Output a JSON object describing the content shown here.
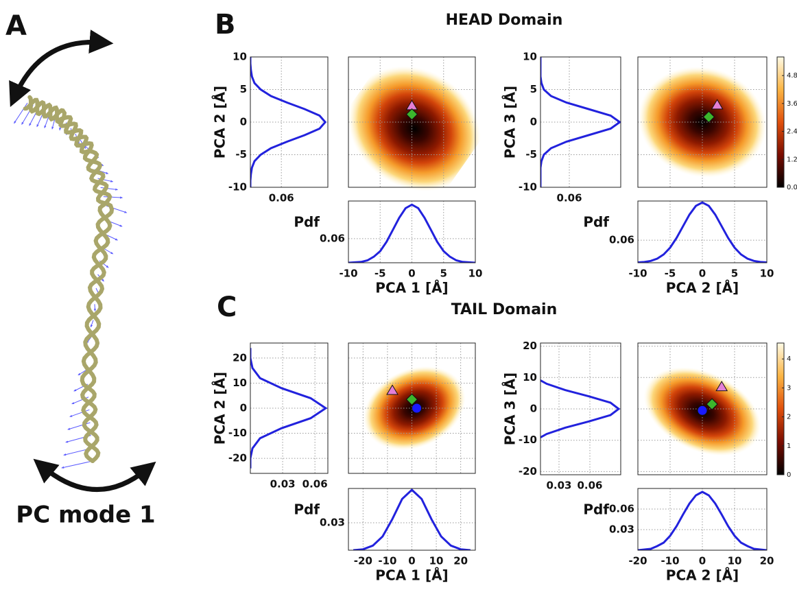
{
  "panels": {
    "A": {
      "label": "A",
      "caption": "PC mode 1"
    },
    "B": {
      "label": "B",
      "title": "HEAD Domain"
    },
    "C": {
      "label": "C",
      "title": "TAIL Domain"
    }
  },
  "chart_data": [
    {
      "type": "line",
      "orientation": "vertical",
      "ylabel": "PCA 2 [Å]",
      "color": "#2222dd",
      "grid": true,
      "ylim": [
        -10,
        10
      ],
      "yticks": [
        10,
        5,
        0,
        -5,
        -10
      ],
      "xlim": [
        0,
        0.15
      ],
      "xticks": [
        0.06
      ],
      "y": [
        -10,
        -9,
        -8,
        -7,
        -6,
        -5,
        -4,
        -3,
        -2,
        -1,
        0,
        1,
        2,
        3,
        4,
        5,
        6,
        7,
        8,
        9,
        10
      ],
      "values": [
        0,
        0,
        0.001,
        0.003,
        0.008,
        0.02,
        0.04,
        0.071,
        0.105,
        0.134,
        0.145,
        0.134,
        0.105,
        0.071,
        0.04,
        0.02,
        0.008,
        0.003,
        0.001,
        0,
        0
      ]
    },
    {
      "type": "scatter",
      "xlim": [
        -10,
        10
      ],
      "ylim": [
        -10,
        10
      ],
      "markers": [
        {
          "shape": "triangle",
          "color": "#e47fd6",
          "x": 0,
          "y": 2.5
        },
        {
          "shape": "diamond",
          "color": "#3cb52c",
          "x": 0,
          "y": 1.2
        }
      ]
    },
    {
      "type": "line",
      "orientation": "horizontal",
      "xlabel": "PCA 1 [Å]",
      "ylabel": "Pdf",
      "color": "#2222dd",
      "grid": true,
      "xlim": [
        -10,
        10
      ],
      "xticks": [
        -10,
        -5,
        0,
        5,
        10
      ],
      "ylim": [
        0,
        0.154
      ],
      "yticks": [
        0.06
      ],
      "x": [
        -10,
        -9,
        -8,
        -7,
        -6,
        -5,
        -4,
        -3,
        -2,
        -1,
        0,
        1,
        2,
        3,
        4,
        5,
        6,
        7,
        8,
        9,
        10
      ],
      "values": [
        0,
        0.001,
        0.002,
        0.006,
        0.015,
        0.029,
        0.052,
        0.082,
        0.112,
        0.136,
        0.145,
        0.136,
        0.112,
        0.082,
        0.052,
        0.029,
        0.015,
        0.006,
        0.002,
        0.001,
        0
      ]
    },
    {
      "type": "line",
      "orientation": "vertical",
      "ylabel": "PCA 3 [Å]",
      "color": "#2222dd",
      "grid": true,
      "ylim": [
        -10,
        10
      ],
      "yticks": [
        10,
        5,
        0,
        -5,
        -10
      ],
      "xlim": [
        0,
        0.167
      ],
      "xticks": [
        0.06
      ],
      "y": [
        -10,
        -9,
        -8,
        -7,
        -6,
        -5,
        -4,
        -3,
        -2,
        -1,
        0,
        1,
        2,
        3,
        4,
        5,
        6,
        7,
        8,
        9,
        10
      ],
      "values": [
        0,
        0,
        0,
        0,
        0.002,
        0.007,
        0.022,
        0.054,
        0.1,
        0.146,
        0.165,
        0.146,
        0.1,
        0.054,
        0.022,
        0.007,
        0.002,
        0,
        0,
        0,
        0
      ]
    },
    {
      "type": "scatter",
      "xlim": [
        -10,
        10
      ],
      "ylim": [
        -10,
        10
      ],
      "markers": [
        {
          "shape": "triangle",
          "color": "#e47fd6",
          "x": 2.3,
          "y": 2.6
        },
        {
          "shape": "diamond",
          "color": "#3cb52c",
          "x": 1,
          "y": 0.8
        }
      ]
    },
    {
      "type": "line",
      "orientation": "horizontal",
      "xlabel": "PCA 2 [Å]",
      "ylabel": "Pdf",
      "color": "#2222dd",
      "grid": true,
      "xlim": [
        -10,
        10
      ],
      "xticks": [
        -10,
        -5,
        0,
        5,
        10
      ],
      "ylim": [
        0,
        0.164
      ],
      "yticks": [
        0.06
      ],
      "x": [
        -10,
        -9,
        -8,
        -7,
        -6,
        -5,
        -4,
        -3,
        -2,
        -1,
        0,
        1,
        2,
        3,
        4,
        5,
        6,
        7,
        8,
        9,
        10
      ],
      "values": [
        0.001,
        0.002,
        0.005,
        0.011,
        0.022,
        0.04,
        0.066,
        0.097,
        0.128,
        0.151,
        0.16,
        0.151,
        0.128,
        0.097,
        0.066,
        0.04,
        0.022,
        0.011,
        0.005,
        0.002,
        0.001
      ]
    },
    {
      "type": "colorbar",
      "ylim": [
        0,
        5.6
      ],
      "yticks": [
        4.8,
        3.6,
        2.4,
        1.2,
        {
          "value": 0,
          "label": "0.0"
        }
      ]
    },
    {
      "type": "line",
      "orientation": "vertical",
      "ylabel": "PCA 2 [Å]",
      "color": "#2222dd",
      "grid": true,
      "ylim": [
        -26,
        26
      ],
      "yticks": [
        20,
        10,
        0,
        -10,
        -20
      ],
      "xlim": [
        0,
        0.072
      ],
      "xticks": [
        0.03,
        0.06
      ],
      "y": [
        -24,
        -20,
        -16,
        -12,
        -8,
        -4,
        0,
        4,
        8,
        12,
        16,
        20,
        24
      ],
      "values": [
        0,
        0,
        0.002,
        0.009,
        0.029,
        0.056,
        0.07,
        0.056,
        0.029,
        0.009,
        0.002,
        0,
        0
      ]
    },
    {
      "type": "scatter",
      "xlim": [
        -26,
        26
      ],
      "ylim": [
        -26,
        26
      ],
      "markers": [
        {
          "shape": "triangle",
          "color": "#e47fd6",
          "x": -8,
          "y": 7
        },
        {
          "shape": "diamond",
          "color": "#3cb52c",
          "x": 0,
          "y": 3.5
        },
        {
          "shape": "circle",
          "color": "#1a1aff",
          "x": 2,
          "y": 0
        }
      ]
    },
    {
      "type": "line",
      "orientation": "horizontal",
      "xlabel": "PCA 1 [Å]",
      "ylabel": "Pdf",
      "color": "#2222dd",
      "grid": true,
      "xlim": [
        -26,
        26
      ],
      "xticks": [
        -20,
        -10,
        0,
        10,
        20
      ],
      "ylim": [
        0,
        0.0675
      ],
      "yticks": [
        0.03
      ],
      "x": [
        -24,
        -20,
        -16,
        -12,
        -8,
        -4,
        0,
        4,
        8,
        12,
        16,
        20,
        24
      ],
      "values": [
        0,
        0.001,
        0.005,
        0.015,
        0.034,
        0.056,
        0.066,
        0.056,
        0.034,
        0.015,
        0.005,
        0.001,
        0
      ]
    },
    {
      "type": "line",
      "orientation": "vertical",
      "ylabel": "PCA 3 [Å]",
      "color": "#2222dd",
      "grid": true,
      "ylim": [
        -21,
        21
      ],
      "yticks": [
        20,
        10,
        0,
        -10,
        -20
      ],
      "xlim": [
        0.012,
        0.09
      ],
      "xticks": [
        0.03,
        0.06
      ],
      "y": [
        -20,
        -18,
        -16,
        -14,
        -12,
        -10,
        -8,
        -6,
        -4,
        -2,
        0,
        2,
        4,
        6,
        8,
        10,
        12,
        14,
        16,
        18,
        20
      ],
      "values": [
        0,
        0,
        0,
        0.001,
        0.003,
        0.007,
        0.018,
        0.036,
        0.059,
        0.08,
        0.088,
        0.08,
        0.059,
        0.036,
        0.018,
        0.007,
        0.003,
        0.001,
        0,
        0,
        0
      ]
    },
    {
      "type": "scatter",
      "xlim": [
        -20,
        20
      ],
      "ylim": [
        -21,
        21
      ],
      "markers": [
        {
          "shape": "triangle",
          "color": "#e47fd6",
          "x": 6,
          "y": 7
        },
        {
          "shape": "diamond",
          "color": "#3cb52c",
          "x": 3,
          "y": 1.5
        },
        {
          "shape": "circle",
          "color": "#1a1aff",
          "x": 0,
          "y": -0.5
        }
      ]
    },
    {
      "type": "line",
      "orientation": "horizontal",
      "xlabel": "PCA 2 [Å]",
      "ylabel": "Pdf",
      "color": "#2222dd",
      "grid": true,
      "xlim": [
        -20,
        20
      ],
      "xticks": [
        -20,
        -10,
        0,
        10,
        20
      ],
      "ylim": [
        0,
        0.09
      ],
      "yticks": [
        0.03,
        0.06
      ],
      "x": [
        -20,
        -18,
        -16,
        -14,
        -12,
        -10,
        -8,
        -6,
        -4,
        -2,
        0,
        2,
        4,
        6,
        8,
        10,
        12,
        14,
        16,
        18,
        20
      ],
      "values": [
        0,
        0.001,
        0.002,
        0.006,
        0.011,
        0.021,
        0.035,
        0.052,
        0.068,
        0.08,
        0.085,
        0.08,
        0.068,
        0.052,
        0.035,
        0.021,
        0.011,
        0.006,
        0.002,
        0.001,
        0
      ]
    },
    {
      "type": "colorbar",
      "ylim": [
        0,
        4.55
      ],
      "yticks": [
        4,
        3,
        2,
        1,
        0
      ]
    }
  ]
}
